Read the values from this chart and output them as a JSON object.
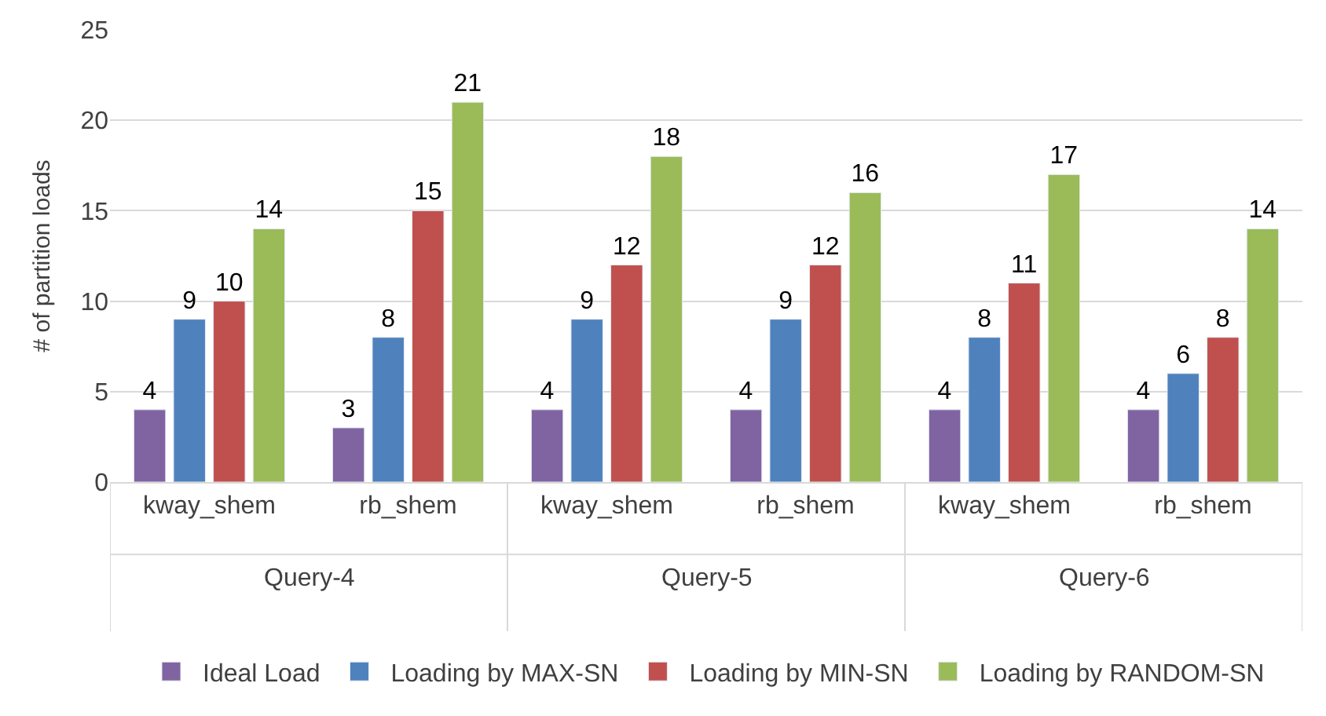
{
  "chart_data": {
    "type": "bar",
    "ylabel": "# of partition loads",
    "categories": [
      "kway_shem",
      "rb_shem",
      "kway_shem",
      "rb_shem",
      "kway_shem",
      "rb_shem"
    ],
    "annotations": [
      "Query-4",
      "Query-5",
      "Query-6"
    ],
    "series": [
      {
        "name": "Ideal Load",
        "color": "#8064a2",
        "values": [
          4,
          3,
          4,
          4,
          4,
          4
        ]
      },
      {
        "name": "Loading by MAX-SN",
        "color": "#4f81bd",
        "values": [
          9,
          8,
          9,
          9,
          8,
          6
        ]
      },
      {
        "name": "Loading by MIN-SN",
        "color": "#c0504d",
        "values": [
          10,
          15,
          12,
          12,
          11,
          8
        ]
      },
      {
        "name": "Loading by RANDOM-SN",
        "color": "#9bbb59",
        "values": [
          14,
          21,
          18,
          16,
          17,
          14
        ]
      }
    ],
    "ylim": [
      0,
      25
    ],
    "yticks": [
      0,
      5,
      10,
      15,
      20,
      25
    ],
    "grid": "y",
    "legend": "bottom",
    "data_labels": true
  }
}
